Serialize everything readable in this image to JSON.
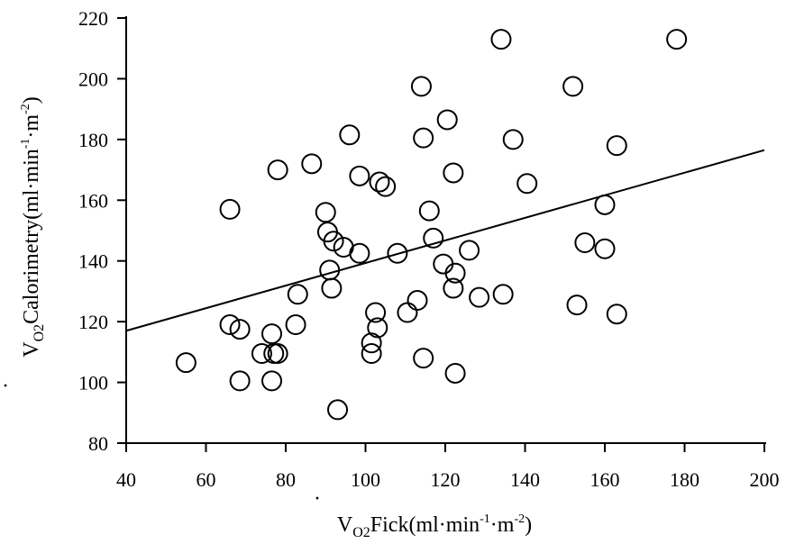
{
  "chart_data": {
    "type": "scatter",
    "title": "",
    "xlabel": {
      "main": "V",
      "sub": "O2",
      "rest": "Fick(ml·min",
      "sup1": "-1",
      "mid": "·m",
      "sup2": "-2",
      "end": ")"
    },
    "ylabel": {
      "main": "V",
      "sub": "O2",
      "rest": "Calorimetry(ml·min",
      "sup1": "-1",
      "mid": "·m",
      "sup2": "-2",
      "end": ")"
    },
    "xlim": [
      40,
      200
    ],
    "ylim": [
      80,
      220
    ],
    "xticks": [
      "40",
      "60",
      "80",
      "100",
      "120",
      "140",
      "160",
      "180",
      "200"
    ],
    "yticks": [
      "80",
      "100",
      "120",
      "140",
      "160",
      "180",
      "200",
      "220"
    ],
    "grid": false,
    "regression_line": {
      "x": [
        40,
        200
      ],
      "y": [
        117,
        176.5
      ]
    },
    "marker_color": "#000000",
    "x": [
      55,
      66,
      66,
      68.5,
      68.5,
      74,
      76.5,
      76.5,
      77,
      78,
      78,
      82.5,
      83,
      86.5,
      90,
      90.5,
      91,
      91.5,
      92,
      93,
      94.5,
      96,
      98.5,
      98.5,
      101.5,
      101.5,
      102.5,
      103,
      103.5,
      105,
      108,
      110.5,
      113,
      114,
      114.5,
      114.5,
      116,
      117,
      119.5,
      120.5,
      122,
      122,
      122.5,
      122.5,
      126,
      128.5,
      134,
      134.5,
      137,
      140.5,
      152,
      153,
      155,
      160,
      160,
      163,
      163,
      178
    ],
    "y": [
      106.5,
      157,
      119,
      100.5,
      117.5,
      109.5,
      116,
      100.5,
      109.5,
      170,
      109.5,
      119,
      129,
      172,
      156,
      149.5,
      137,
      131,
      146.5,
      91,
      144.5,
      181.5,
      142.5,
      168,
      109.5,
      113,
      123,
      118,
      166,
      164.5,
      142.5,
      123,
      127,
      197.5,
      180.5,
      108,
      156.5,
      147.5,
      139,
      186.5,
      169,
      131,
      103,
      136,
      143.5,
      128,
      213,
      129,
      180,
      165.5,
      197.5,
      125.5,
      146,
      144,
      158.5,
      122.5,
      178,
      213
    ]
  }
}
